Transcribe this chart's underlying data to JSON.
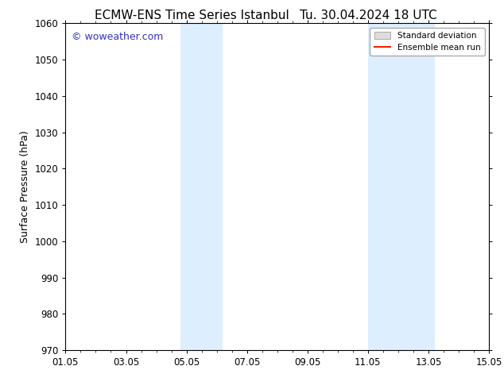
{
  "title_left": "ECMW-ENS Time Series Istanbul",
  "title_right": "Tu. 30.04.2024 18 UTC",
  "ylabel": "Surface Pressure (hPa)",
  "ylim": [
    970,
    1060
  ],
  "yticks": [
    970,
    980,
    990,
    1000,
    1010,
    1020,
    1030,
    1040,
    1050,
    1060
  ],
  "xlim_start": 0,
  "xlim_end": 14,
  "xtick_labels": [
    "01.05",
    "03.05",
    "05.05",
    "07.05",
    "09.05",
    "11.05",
    "13.05",
    "15.05"
  ],
  "xtick_positions": [
    0,
    2,
    4,
    6,
    8,
    10,
    12,
    14
  ],
  "shaded_bands": [
    {
      "x_start": 3.8,
      "x_end": 5.2
    },
    {
      "x_start": 10.0,
      "x_end": 12.2
    }
  ],
  "shaded_color": "#ddeeff",
  "background_color": "#ffffff",
  "plot_bg_color": "#ffffff",
  "watermark_text": "© woweather.com",
  "watermark_color": "#3333bb",
  "legend_std_label": "Standard deviation",
  "legend_ens_label": "Ensemble mean run",
  "legend_std_facecolor": "#dddddd",
  "legend_std_edgecolor": "#aaaaaa",
  "legend_ens_color": "#ee2200",
  "border_color": "#000000",
  "title_fontsize": 11,
  "axis_label_fontsize": 9,
  "tick_fontsize": 8.5,
  "watermark_fontsize": 9,
  "legend_fontsize": 7.5
}
